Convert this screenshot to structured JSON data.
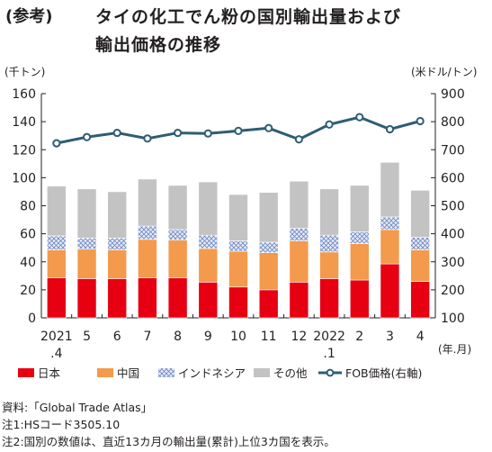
{
  "title": {
    "prefix": "(参考)",
    "line1": "タイの化工でん粉の国別輸出量および",
    "line2": "輸出価格の推移"
  },
  "chart_data": {
    "type": "bar",
    "stacked": true,
    "categories": [
      "2021\n.4",
      "5",
      "6",
      "7",
      "8",
      "9",
      "10",
      "11",
      "12",
      "2022\n.1",
      "2",
      "3",
      "4"
    ],
    "category_lines": [
      [
        "2021",
        ".4"
      ],
      [
        "5"
      ],
      [
        "6"
      ],
      [
        "7"
      ],
      [
        "8"
      ],
      [
        "9"
      ],
      [
        "10"
      ],
      [
        "11"
      ],
      [
        "12"
      ],
      [
        "2022",
        ".1"
      ],
      [
        "2"
      ],
      [
        "3"
      ],
      [
        "4"
      ]
    ],
    "x_unit": "(年.月)",
    "left_axis": {
      "unit": "(千トン)",
      "min": 0,
      "max": 160,
      "ticks": [
        0,
        20,
        40,
        60,
        80,
        100,
        120,
        140,
        160
      ]
    },
    "right_axis": {
      "unit": "(米ドル/トン)",
      "min": 100,
      "max": 900,
      "ticks": [
        100,
        200,
        300,
        400,
        500,
        600,
        700,
        800,
        900
      ]
    },
    "grid": false,
    "legend_position": "bottom",
    "series": [
      {
        "name": "日本",
        "kind": "bar",
        "axis": "left",
        "color": "#e60012",
        "values": [
          28.5,
          28,
          28,
          28.5,
          28.5,
          25.5,
          22,
          20,
          25.5,
          28,
          27,
          38.5,
          26
        ]
      },
      {
        "name": "中国",
        "kind": "bar",
        "axis": "left",
        "color": "#f39a4c",
        "values": [
          20,
          21,
          20.5,
          27.5,
          27,
          24,
          25.5,
          26.5,
          29.5,
          19,
          26,
          24.5,
          22.5
        ]
      },
      {
        "name": "インドネシア",
        "kind": "bar",
        "axis": "left",
        "color": "#dfe6f5",
        "pattern": "crosshatch",
        "values": [
          10,
          8,
          8.5,
          9.5,
          7.5,
          9.5,
          7.5,
          7.5,
          9,
          12,
          8.5,
          9,
          9
        ]
      },
      {
        "name": "その他",
        "kind": "bar",
        "axis": "left",
        "color": "#c3c3c3",
        "values": [
          35.5,
          35,
          33,
          33.5,
          31.5,
          38,
          33,
          35.5,
          33.5,
          33,
          33,
          39,
          33.5
        ]
      },
      {
        "name": "FOB価格(右軸)",
        "kind": "line",
        "axis": "right",
        "color": "#2e5d73",
        "values": [
          723,
          745,
          760,
          740,
          760,
          758,
          767,
          777,
          737,
          790,
          816,
          773,
          802
        ]
      }
    ]
  },
  "notes": [
    "資料:「Global Trade Atlas」",
    "注1:HSコード3505.10",
    "注2:国別の数値は、直近13カ月の輸出量(累計)上位3カ国を表示。"
  ],
  "colors": {
    "axis": "#231f20",
    "line": "#2e5d73",
    "marker_fill": "#ffffff"
  }
}
